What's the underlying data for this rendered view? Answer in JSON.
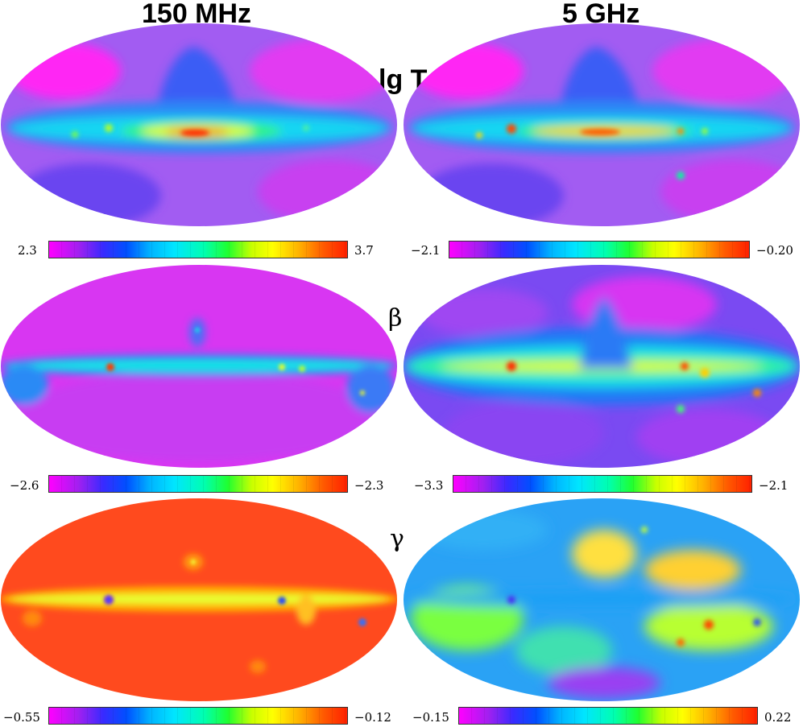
{
  "columns": [
    "150 MHz",
    "5 GHz"
  ],
  "rows": [
    {
      "label": "lg T",
      "label_style": "bold",
      "maps": [
        {
          "colorbar": {
            "min": "2.3",
            "max": "3.7"
          }
        },
        {
          "colorbar": {
            "min": "−2.1",
            "max": "−0.20"
          }
        }
      ]
    },
    {
      "label": "β",
      "label_style": "greek",
      "maps": [
        {
          "colorbar": {
            "min": "−2.6",
            "max": "−2.3"
          }
        },
        {
          "colorbar": {
            "min": "−3.3",
            "max": "−2.1"
          }
        }
      ]
    },
    {
      "label": "γ",
      "label_style": "greek",
      "maps": [
        {
          "colorbar": {
            "min": "−0.55",
            "max": "−0.12"
          }
        },
        {
          "colorbar": {
            "min": "−0.15",
            "max": "0.22"
          }
        }
      ]
    }
  ]
}
